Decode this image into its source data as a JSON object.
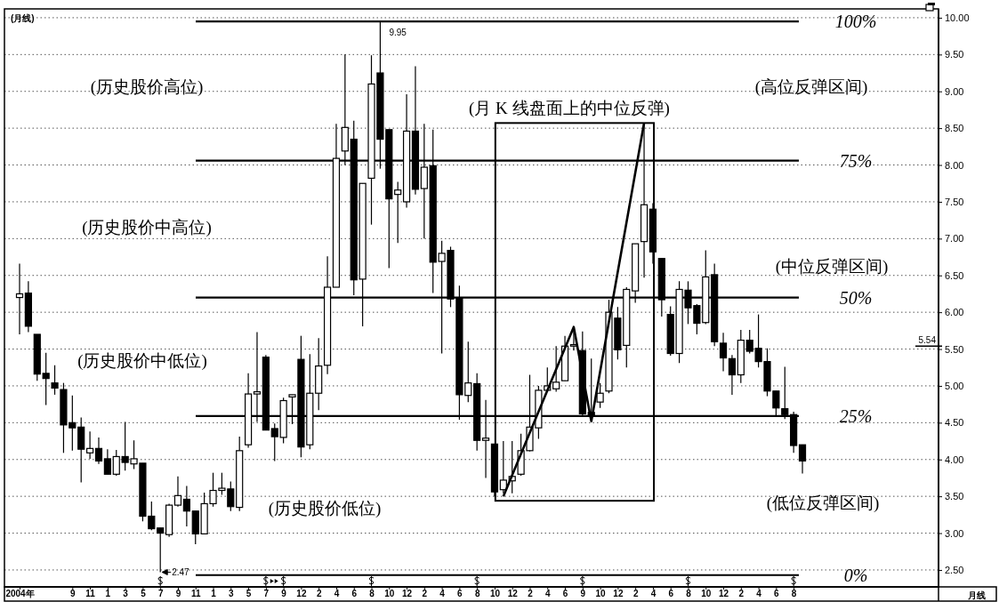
{
  "chart_data": {
    "type": "candlestick",
    "title": "(月线)",
    "categories": [
      "2004年",
      null,
      null,
      null,
      null,
      null,
      "9",
      null,
      "11",
      null,
      "1",
      null,
      "3",
      null,
      "5",
      null,
      "7",
      null,
      "9",
      null,
      "11",
      null,
      "1",
      null,
      "3",
      null,
      "5",
      null,
      "7",
      null,
      "9",
      null,
      "12",
      null,
      "2",
      null,
      "4",
      null,
      "6",
      null,
      "8",
      null,
      "10",
      null,
      "12",
      null,
      "2",
      null,
      "4",
      null,
      "6",
      null,
      "8",
      null,
      "10",
      null,
      "12",
      null,
      "2",
      null,
      "4",
      null,
      "6",
      null,
      "9",
      null,
      "10",
      null,
      "12",
      null,
      "2",
      null,
      "4",
      null,
      "6",
      null,
      "8",
      null,
      "10",
      null,
      "12",
      null,
      "2",
      null,
      "4",
      null,
      "6",
      null,
      "8",
      null,
      null,
      null,
      null,
      null,
      null,
      null,
      null,
      null,
      null,
      null,
      null,
      null,
      null,
      null,
      null
    ],
    "ohlc": [
      [
        6.2,
        6.66,
        5.7,
        6.25
      ],
      [
        6.26,
        6.42,
        5.73,
        5.81
      ],
      [
        5.7,
        5.7,
        5.07,
        5.16
      ],
      [
        5.17,
        5.45,
        4.74,
        5.1
      ],
      [
        5.04,
        5.28,
        4.88,
        4.97
      ],
      [
        4.95,
        5.04,
        4.09,
        4.47
      ],
      [
        4.5,
        4.87,
        4.12,
        4.43
      ],
      [
        4.44,
        4.57,
        3.69,
        4.14
      ],
      [
        4.09,
        4.38,
        4.01,
        4.15
      ],
      [
        4.15,
        4.3,
        3.94,
        3.98
      ],
      [
        4.01,
        4.14,
        3.8,
        3.8
      ],
      [
        3.8,
        4.13,
        3.78,
        4.04
      ],
      [
        4.04,
        4.51,
        3.85,
        3.96
      ],
      [
        3.94,
        4.26,
        3.87,
        4.01
      ],
      [
        3.95,
        3.95,
        3.16,
        3.23
      ],
      [
        3.23,
        3.43,
        3.04,
        3.06
      ],
      [
        3.07,
        3.07,
        2.47,
        3.0
      ],
      [
        2.98,
        3.4,
        2.95,
        3.38
      ],
      [
        3.38,
        3.77,
        3.36,
        3.51
      ],
      [
        3.46,
        3.64,
        3.09,
        3.3
      ],
      [
        3.3,
        3.3,
        2.85,
        2.99
      ],
      [
        2.99,
        3.55,
        2.99,
        3.4
      ],
      [
        3.4,
        3.82,
        3.36,
        3.58
      ],
      [
        3.58,
        3.82,
        3.52,
        3.61
      ],
      [
        3.6,
        3.7,
        3.3,
        3.36
      ],
      [
        3.35,
        4.31,
        3.3,
        4.12
      ],
      [
        4.2,
        5.17,
        4.16,
        4.89
      ],
      [
        4.89,
        5.73,
        4.51,
        4.92
      ],
      [
        5.39,
        5.42,
        4.4,
        4.4
      ],
      [
        4.42,
        4.49,
        3.98,
        4.31
      ],
      [
        4.3,
        4.84,
        4.22,
        4.8
      ],
      [
        4.85,
        4.88,
        4.48,
        4.88
      ],
      [
        5.36,
        5.68,
        4.03,
        4.17
      ],
      [
        4.2,
        5.43,
        4.14,
        4.9
      ],
      [
        4.9,
        5.65,
        4.67,
        5.27
      ],
      [
        5.28,
        6.76,
        5.16,
        6.34
      ],
      [
        6.34,
        8.56,
        6.34,
        8.09
      ],
      [
        8.19,
        9.5,
        8.0,
        8.51
      ],
      [
        8.35,
        8.6,
        6.23,
        6.44
      ],
      [
        6.45,
        7.75,
        5.81,
        7.75
      ],
      [
        7.82,
        9.49,
        7.19,
        9.1
      ],
      [
        9.25,
        9.95,
        7.95,
        8.35
      ],
      [
        8.48,
        8.48,
        6.6,
        7.54
      ],
      [
        7.6,
        7.77,
        6.94,
        7.66
      ],
      [
        7.5,
        8.96,
        7.42,
        8.46
      ],
      [
        8.46,
        9.34,
        7.6,
        7.67
      ],
      [
        7.68,
        8.56,
        7.0,
        7.97
      ],
      [
        7.99,
        8.48,
        6.26,
        6.68
      ],
      [
        6.69,
        6.97,
        5.44,
        6.8
      ],
      [
        6.84,
        6.89,
        6.07,
        6.18
      ],
      [
        6.19,
        6.36,
        4.54,
        4.88
      ],
      [
        4.87,
        5.6,
        4.78,
        5.04
      ],
      [
        5.03,
        5.17,
        4.12,
        4.26
      ],
      [
        4.26,
        4.81,
        3.75,
        4.29
      ],
      [
        4.21,
        4.21,
        3.5,
        3.56
      ],
      [
        3.59,
        4.25,
        3.54,
        3.72
      ],
      [
        3.71,
        4.25,
        3.54,
        3.77
      ],
      [
        3.8,
        4.35,
        3.78,
        4.12
      ],
      [
        4.12,
        5.15,
        4.11,
        4.44
      ],
      [
        4.43,
        5.0,
        4.28,
        4.94
      ],
      [
        4.94,
        5.25,
        4.92,
        5.0
      ],
      [
        4.96,
        5.54,
        4.92,
        5.05
      ],
      [
        5.07,
        5.68,
        5.07,
        5.54
      ],
      [
        5.54,
        5.81,
        5.48,
        5.56
      ],
      [
        5.48,
        5.74,
        4.59,
        4.62
      ],
      [
        4.64,
        5.37,
        4.56,
        4.6
      ],
      [
        4.78,
        5.04,
        4.7,
        4.9
      ],
      [
        4.93,
        6.17,
        4.9,
        6.0
      ],
      [
        5.92,
        6.07,
        5.36,
        5.49
      ],
      [
        5.55,
        6.34,
        5.25,
        6.31
      ],
      [
        6.29,
        6.93,
        6.13,
        6.93
      ],
      [
        6.96,
        8.54,
        6.47,
        7.46
      ],
      [
        7.4,
        7.48,
        6.66,
        6.82
      ],
      [
        6.73,
        6.73,
        5.94,
        6.17
      ],
      [
        5.97,
        6.08,
        5.41,
        5.44
      ],
      [
        5.44,
        6.42,
        5.31,
        6.31
      ],
      [
        6.3,
        6.42,
        5.84,
        6.06
      ],
      [
        6.09,
        6.11,
        5.7,
        5.85
      ],
      [
        5.86,
        6.84,
        5.84,
        6.48
      ],
      [
        6.51,
        6.66,
        5.54,
        5.6
      ],
      [
        5.58,
        5.72,
        5.2,
        5.38
      ],
      [
        5.37,
        5.42,
        4.88,
        5.15
      ],
      [
        5.15,
        5.76,
        5.04,
        5.62
      ],
      [
        5.62,
        5.76,
        5.44,
        5.47
      ],
      [
        5.51,
        5.97,
        5.25,
        5.33
      ],
      [
        5.33,
        5.51,
        4.86,
        4.93
      ],
      [
        4.93,
        4.93,
        4.6,
        4.7
      ],
      [
        4.69,
        5.26,
        4.55,
        4.61
      ],
      [
        4.61,
        4.65,
        4.09,
        4.19
      ],
      [
        4.2,
        4.2,
        3.81,
        3.98
      ],
      null,
      null,
      null,
      null,
      null,
      null,
      null,
      null,
      null,
      null,
      null,
      null,
      null,
      null,
      null
    ],
    "series": [
      {
        "type": "line",
        "color": "#000000",
        "values": [
          null,
          null,
          null,
          null,
          null,
          null,
          null,
          null,
          null,
          null,
          null,
          null,
          null,
          null,
          null,
          null,
          null,
          null,
          null,
          null,
          null,
          null,
          null,
          null,
          null,
          null,
          null,
          null,
          null,
          null,
          null,
          null,
          null,
          null,
          null,
          null,
          null,
          null,
          null,
          null,
          null,
          null,
          null,
          null,
          null,
          null,
          null,
          null,
          null,
          null,
          null,
          null,
          null,
          null,
          null,
          3.5,
          null,
          null,
          null,
          null,
          null,
          null,
          null,
          5.8,
          null,
          4.52,
          null,
          null,
          null,
          null,
          null,
          8.57,
          null,
          null,
          null,
          null,
          null,
          null,
          null,
          null,
          null,
          null,
          null,
          null,
          null,
          null,
          null,
          null,
          null,
          null,
          null,
          null,
          null,
          null,
          null,
          null,
          null,
          null,
          null,
          null,
          null,
          null,
          null,
          null,
          null
        ]
      }
    ],
    "ylim": [
      2.27,
      10.12
    ],
    "yticks": [
      {
        "value": 2.5,
        "label": "2.50"
      },
      {
        "value": 3,
        "label": "3.00"
      },
      {
        "value": 3.5,
        "label": "3.50"
      },
      {
        "value": 4,
        "label": "4.00"
      },
      {
        "value": 4.5,
        "label": "4.50"
      },
      {
        "value": 5,
        "label": "5.00"
      },
      {
        "value": 5.5,
        "label": "5.50"
      },
      {
        "value": 6,
        "label": "6.00"
      },
      {
        "value": 6.5,
        "label": "6.50"
      },
      {
        "value": 7,
        "label": "7.00"
      },
      {
        "value": 7.5,
        "label": "7.50"
      },
      {
        "value": 8,
        "label": "8.00"
      },
      {
        "value": 8.5,
        "label": "8.50"
      },
      {
        "value": 9,
        "label": "9.00"
      },
      {
        "value": 9.5,
        "label": "9.50"
      },
      {
        "value": 10,
        "label": "10.00"
      }
    ],
    "grid": "y",
    "ref_lines": [
      {
        "axis": "y",
        "value": 9.95,
        "color": "#000000"
      },
      {
        "axis": "y",
        "value": 8.06,
        "color": "#000000"
      },
      {
        "axis": "y",
        "value": 6.2,
        "color": "#000000"
      },
      {
        "axis": "y",
        "value": 4.59,
        "color": "#000000"
      },
      {
        "axis": "y",
        "value": 2.43,
        "color": "#000000"
      },
      {
        "axis": "y",
        "value": 5.54,
        "label": "5.54",
        "color": "#000000"
      }
    ],
    "annotations": [
      "(历史股价高位)",
      "(历史股价中高位)",
      "(历史股价中低位)",
      "(历史股价低位)",
      "(月 K 线盘面上的中位反弹)",
      "(高位反弹区间)",
      "(中位反弹区间)",
      "(低位反弹区间)",
      {
        "text": "9.95",
        "y": 9.95
      },
      "2.47",
      "月线",
      "100%",
      "75%",
      "50%",
      "25%",
      "0%"
    ]
  }
}
